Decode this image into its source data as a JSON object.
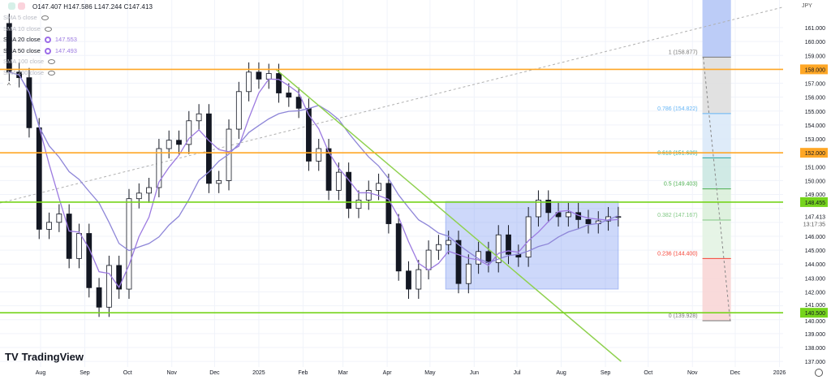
{
  "header": {
    "ohlc": "O147.407 H147.586 L147.244 C147.413"
  },
  "indicators": [
    {
      "label": "SMA 5 close",
      "visible": false
    },
    {
      "label": "SMA 10 close",
      "visible": false
    },
    {
      "label": "SMA 20 close",
      "visible": true,
      "value": "147.553"
    },
    {
      "label": "SMA 50 close",
      "visible": true,
      "value": "147.493"
    },
    {
      "label": "SMA 100 close",
      "visible": false
    },
    {
      "label": "SMA 200 close",
      "visible": false
    }
  ],
  "currency": "JPY",
  "brand": "TradingView",
  "chart_data": {
    "type": "candlestick",
    "title": "",
    "ylim": [
      136.5,
      162.5
    ],
    "y_ticks": [
      137,
      138,
      139,
      140,
      141,
      142,
      143,
      144,
      145,
      146,
      147,
      148,
      149,
      150,
      151,
      152,
      153,
      154,
      155,
      156,
      157,
      158,
      159,
      160,
      161
    ],
    "x_ticks": [
      "Aug",
      "Sep",
      "Oct",
      "Nov",
      "Dec",
      "2025",
      "Feb",
      "Mar",
      "Apr",
      "May",
      "Jun",
      "Jul",
      "Aug",
      "Sep",
      "Oct",
      "Nov",
      "Dec",
      "2026"
    ],
    "x_tick_dates": [
      "2024-08-01",
      "2024-09-01",
      "2024-10-01",
      "2024-11-01",
      "2024-12-01",
      "2025-01-01",
      "2025-02-01",
      "2025-03-01",
      "2025-04-01",
      "2025-05-01",
      "2025-06-01",
      "2025-07-01",
      "2025-08-01",
      "2025-09-01",
      "2025-10-01",
      "2025-11-01",
      "2025-12-01",
      "2026-01-01"
    ],
    "grid": true,
    "start_week": "2024-07-08",
    "weekly_close": [
      157.8,
      157.4,
      153.8,
      146.5,
      147.0,
      147.6,
      144.4,
      146.2,
      142.3,
      140.9,
      143.9,
      142.2,
      148.7,
      149.1,
      149.5,
      152.3,
      152.9,
      152.6,
      154.3,
      154.8,
      149.8,
      150.0,
      153.7,
      156.4,
      157.8,
      157.3,
      157.7,
      156.3,
      156.0,
      155.2,
      151.4,
      152.3,
      149.3,
      150.6,
      148.0,
      148.6,
      149.3,
      149.8,
      146.9,
      143.5,
      142.2,
      143.6,
      145.0,
      145.4,
      145.7,
      142.6,
      144.0,
      144.9,
      144.1,
      146.1,
      144.7,
      144.5,
      147.4,
      148.6,
      147.7,
      147.4,
      147.7,
      147.2,
      146.9,
      147.1,
      147.4,
      147.413
    ],
    "first_open": 161.3,
    "last_price": "147.413",
    "countdown": "13:17:35",
    "horizontal_levels": [
      {
        "price": 158.0,
        "label": "158.000",
        "color": "#ffa726"
      },
      {
        "price": 152.0,
        "label": "152.000",
        "color": "#ffa726"
      },
      {
        "price": 148.455,
        "label": "148.455",
        "color": "#76d41c"
      },
      {
        "price": 140.5,
        "label": "140.500",
        "color": "#76d41c"
      }
    ],
    "range_box": {
      "from": "2025-05-12",
      "to": "2025-09-10",
      "top": 148.5,
      "bottom": 142.2,
      "color": "#6f8ff0"
    },
    "trend_line": {
      "from": {
        "date": "2025-01-13",
        "price": 158.0
      },
      "to": {
        "date": "2025-09-12",
        "price": 137.0
      },
      "color": "#8fd14f"
    },
    "fib": {
      "from": "2025-11-08",
      "to": "2025-11-28",
      "levels": [
        {
          "ratio": "1",
          "text": "1 (158.877)",
          "price": 158.877,
          "color": "#777777",
          "fill": "#bcccf7"
        },
        {
          "ratio": "0.786",
          "text": "0.786 (154.822)",
          "price": 154.822,
          "color": "#64b5f6",
          "fill": "#dcdcdc"
        },
        {
          "ratio": "0.618",
          "text": "0.618 (151.639)",
          "price": 151.639,
          "color": "#26a69a",
          "fill": "#d8e8f8"
        },
        {
          "ratio": "0.5",
          "text": "0.5 (149.403)",
          "price": 149.403,
          "color": "#4caf50",
          "fill": "#c8e6e0"
        },
        {
          "ratio": "0.382",
          "text": "0.382 (147.167)",
          "price": 147.167,
          "color": "#81c784",
          "fill": "#d8eed8"
        },
        {
          "ratio": "0.236",
          "text": "0.236 (144.400)",
          "price": 144.4,
          "color": "#f44336",
          "fill": "#e2f2e2"
        },
        {
          "ratio": "0",
          "text": "0 (139.928)",
          "price": 139.928,
          "color": "#777777",
          "fill": "#f8d4d4"
        }
      ]
    },
    "sma_colors": [
      "#9c7ae0",
      "#8e86d8"
    ]
  }
}
